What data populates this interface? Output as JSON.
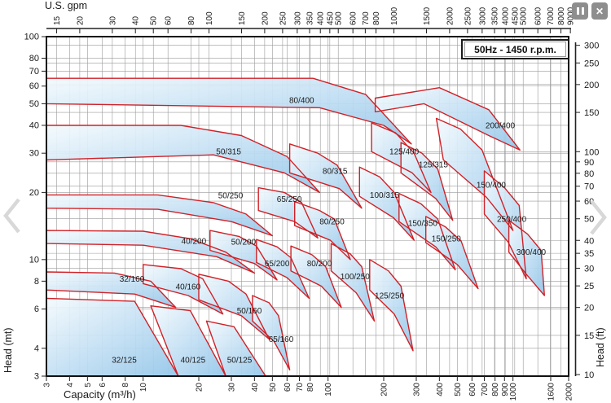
{
  "viewer": {
    "pause_icon": "pause",
    "close_icon": "✕",
    "prev_icon": "chevron-left",
    "next_icon": "chevron-right"
  },
  "chart_data": {
    "type": "area",
    "title": "50Hz - 1450 r.p.m.",
    "scale": "log-log",
    "gpm_per_m3h": 4.4029,
    "ft_per_m": 3.2808,
    "axes": {
      "top": {
        "label": "U.S. gpm",
        "ticks": [
          15,
          20,
          30,
          40,
          50,
          60,
          80,
          100,
          150,
          200,
          250,
          300,
          350,
          400,
          450,
          500,
          600,
          700,
          800,
          1000,
          1500,
          2000,
          2500,
          3000,
          3500,
          4000,
          4500,
          5000,
          6000,
          7000,
          8000,
          9000
        ]
      },
      "bottom": {
        "label": "Capacity (m³/h)",
        "range": [
          3,
          2000
        ],
        "ticks": [
          3,
          4,
          5,
          6,
          8,
          10,
          20,
          30,
          40,
          50,
          60,
          70,
          80,
          100,
          200,
          300,
          400,
          500,
          600,
          700,
          800,
          900,
          1000,
          1600,
          2000
        ]
      },
      "left": {
        "label": "Head (mt)",
        "range": [
          3,
          100
        ],
        "ticks": [
          100,
          80,
          70,
          60,
          50,
          40,
          30,
          20,
          10,
          8,
          6,
          4,
          3
        ]
      },
      "right": {
        "label": "Head (ft)",
        "ticks": [
          300,
          250,
          200,
          150,
          100,
          90,
          80,
          70,
          60,
          50,
          40,
          35,
          30,
          25,
          20,
          15,
          10
        ]
      }
    },
    "colors": {
      "curve": "#cf2127",
      "grid": "#9a9a9a",
      "axis": "#1a1a1a",
      "fill_light": "#f4fafd",
      "fill_mid": "#c4e0f4",
      "fill_dark": "#93c6e9"
    },
    "regions": [
      {
        "label": "80/400",
        "label_q": 72,
        "label_h": 52,
        "points": [
          [
            3,
            65
          ],
          [
            83,
            65
          ],
          [
            160,
            55
          ],
          [
            282,
            33
          ],
          [
            200,
            40
          ],
          [
            90,
            48
          ],
          [
            3,
            50
          ]
        ]
      },
      {
        "label": "50/315",
        "label_q": 29,
        "label_h": 30.5,
        "points": [
          [
            3,
            40
          ],
          [
            16,
            40
          ],
          [
            34,
            36
          ],
          [
            60,
            29
          ],
          [
            90,
            20
          ],
          [
            58,
            24.5
          ],
          [
            24,
            29.5
          ],
          [
            3,
            28
          ]
        ]
      },
      {
        "label": "50/250",
        "label_q": 29.7,
        "label_h": 19.4,
        "points": [
          [
            3,
            19.5
          ],
          [
            12,
            19.5
          ],
          [
            24,
            18
          ],
          [
            36,
            16
          ],
          [
            50,
            12.8
          ],
          [
            30,
            14.8
          ],
          [
            12,
            16.8
          ],
          [
            3,
            17
          ]
        ]
      },
      {
        "label": "40/200",
        "label_q": 18.8,
        "label_h": 12.1,
        "points": [
          [
            3,
            13.5
          ],
          [
            10,
            13.4
          ],
          [
            18,
            12.4
          ],
          [
            28,
            10.8
          ],
          [
            40,
            8.7
          ],
          [
            25,
            10.3
          ],
          [
            10,
            11.6
          ],
          [
            3,
            11.8
          ]
        ]
      },
      {
        "label": "32/160",
        "label_q": 8.7,
        "label_h": 8.2,
        "points": [
          [
            3,
            8.8
          ],
          [
            7,
            8.7
          ],
          [
            11,
            8
          ],
          [
            15,
            6.1
          ],
          [
            9,
            7
          ],
          [
            3,
            7.3
          ]
        ]
      },
      {
        "label": "32/125",
        "label_q": 7.9,
        "label_h": 3.55,
        "points": [
          [
            3,
            6.7
          ],
          [
            9,
            6.5
          ],
          [
            15.5,
            3
          ],
          [
            3,
            3
          ]
        ]
      },
      {
        "label": "40/160",
        "label_q": 17.5,
        "label_h": 7.55,
        "points": [
          [
            10,
            9.5
          ],
          [
            16,
            9.1
          ],
          [
            21,
            8.2
          ],
          [
            27,
            5.7
          ],
          [
            17.5,
            6.9
          ],
          [
            10,
            7.8
          ]
        ]
      },
      {
        "label": "40/125",
        "label_q": 18.6,
        "label_h": 3.55,
        "points": [
          [
            11,
            6.2
          ],
          [
            18,
            5.9
          ],
          [
            28,
            3
          ],
          [
            15.5,
            3
          ]
        ]
      },
      {
        "label": "50/200",
        "label_q": 34.9,
        "label_h": 12,
        "points": [
          [
            23,
            13.5
          ],
          [
            33,
            12.7
          ],
          [
            41,
            11.5
          ],
          [
            53,
            8.1
          ],
          [
            40,
            9.6
          ],
          [
            23,
            11
          ]
        ]
      },
      {
        "label": "50/160",
        "label_q": 37.5,
        "label_h": 5.9,
        "points": [
          [
            20,
            8.6
          ],
          [
            29,
            8
          ],
          [
            36,
            7
          ],
          [
            48,
            4.4
          ],
          [
            34,
            5.6
          ],
          [
            20,
            6.6
          ]
        ]
      },
      {
        "label": "50/125",
        "label_q": 33.2,
        "label_h": 3.55,
        "points": [
          [
            22,
            5.3
          ],
          [
            31,
            5
          ],
          [
            46,
            3
          ],
          [
            28,
            3
          ]
        ]
      },
      {
        "label": "65/250",
        "label_q": 61.7,
        "label_h": 18.7,
        "points": [
          [
            42,
            21
          ],
          [
            58,
            20
          ],
          [
            72,
            18
          ],
          [
            88,
            12.5
          ],
          [
            66,
            14.8
          ],
          [
            42,
            16.6
          ]
        ]
      },
      {
        "label": "65/200",
        "label_q": 53,
        "label_h": 9.6,
        "points": [
          [
            41,
            12.3
          ],
          [
            53,
            11.4
          ],
          [
            63,
            10.2
          ],
          [
            79,
            6.7
          ],
          [
            60,
            8.3
          ],
          [
            41,
            9.7
          ]
        ]
      },
      {
        "label": "65/160",
        "label_q": 55.7,
        "label_h": 4.4,
        "points": [
          [
            39,
            6.9
          ],
          [
            48,
            6.4
          ],
          [
            54,
            5.6
          ],
          [
            62,
            3.2
          ],
          [
            51,
            4.3
          ],
          [
            39,
            5.3
          ]
        ]
      },
      {
        "label": "80/315",
        "label_q": 109,
        "label_h": 25,
        "points": [
          [
            62,
            33
          ],
          [
            88,
            30
          ],
          [
            112,
            26.5
          ],
          [
            152,
            17
          ],
          [
            115,
            20.8
          ],
          [
            62,
            24.5
          ]
        ]
      },
      {
        "label": "80/250",
        "label_q": 105,
        "label_h": 14.8,
        "points": [
          [
            66,
            18.2
          ],
          [
            90,
            16.6
          ],
          [
            108,
            15.2
          ],
          [
            132,
            10
          ],
          [
            103,
            12.2
          ],
          [
            66,
            14.2
          ]
        ]
      },
      {
        "label": "80/200",
        "label_q": 89.7,
        "label_h": 9.6,
        "points": [
          [
            63,
            11.5
          ],
          [
            82,
            10.5
          ],
          [
            97,
            9.3
          ],
          [
            118,
            6.1
          ],
          [
            92,
            7.6
          ],
          [
            63,
            8.9
          ]
        ]
      },
      {
        "label": "100/315",
        "label_q": 202,
        "label_h": 19.5,
        "points": [
          [
            148,
            26
          ],
          [
            190,
            23.5
          ],
          [
            228,
            20
          ],
          [
            292,
            12.2
          ],
          [
            226,
            15.4
          ],
          [
            148,
            19.2
          ]
        ]
      },
      {
        "label": "100/250",
        "label_q": 140,
        "label_h": 8.4,
        "points": [
          [
            104,
            11.8
          ],
          [
            132,
            10.6
          ],
          [
            152,
            9.3
          ],
          [
            178,
            5.3
          ],
          [
            142,
            7.1
          ],
          [
            104,
            8.9
          ]
        ]
      },
      {
        "label": "125/400",
        "label_q": 258,
        "label_h": 30.5,
        "points": [
          [
            172,
            41
          ],
          [
            232,
            37
          ],
          [
            292,
            30
          ],
          [
            360,
            20
          ],
          [
            285,
            24.5
          ],
          [
            172,
            30.5
          ]
        ]
      },
      {
        "label": "125/315",
        "label_q": 371,
        "label_h": 26.7,
        "points": [
          [
            248,
            33.5
          ],
          [
            322,
            30
          ],
          [
            392,
            25.5
          ],
          [
            472,
            15
          ],
          [
            382,
            18.8
          ],
          [
            248,
            24.5
          ]
        ]
      },
      {
        "label": "125/250",
        "label_q": 215,
        "label_h": 6.9,
        "points": [
          [
            168,
            10
          ],
          [
            212,
            8.9
          ],
          [
            248,
            7.6
          ],
          [
            288,
            3.9
          ],
          [
            228,
            5.7
          ],
          [
            168,
            7.3
          ]
        ]
      },
      {
        "label": "150/400",
        "label_q": 762,
        "label_h": 21.6,
        "points": [
          [
            385,
            43
          ],
          [
            520,
            38.5
          ],
          [
            680,
            31
          ],
          [
            1000,
            13.5
          ],
          [
            720,
            19
          ],
          [
            420,
            28
          ]
        ]
      },
      {
        "label": "150/350",
        "label_q": 325,
        "label_h": 14.6,
        "points": [
          [
            242,
            19.8
          ],
          [
            318,
            17.8
          ],
          [
            392,
            15.2
          ],
          [
            488,
            9
          ],
          [
            382,
            11.4
          ],
          [
            242,
            14.8
          ]
        ]
      },
      {
        "label": "150/250",
        "label_q": 436,
        "label_h": 12.4,
        "points": [
          [
            338,
            15.6
          ],
          [
            432,
            14
          ],
          [
            525,
            12.1
          ],
          [
            648,
            7.4
          ],
          [
            500,
            9.5
          ],
          [
            338,
            11.9
          ]
        ]
      },
      {
        "label": "200/400",
        "label_q": 853,
        "label_h": 40,
        "points": [
          [
            180,
            53
          ],
          [
            400,
            59
          ],
          [
            740,
            47
          ],
          [
            1090,
            31
          ],
          [
            740,
            36
          ],
          [
            330,
            50
          ],
          [
            180,
            46
          ]
        ]
      },
      {
        "label": "250/400",
        "label_q": 984,
        "label_h": 15.2,
        "points": [
          [
            700,
            25
          ],
          [
            900,
            21
          ],
          [
            1080,
            17.5
          ],
          [
            1180,
            8.2
          ],
          [
            940,
            12
          ],
          [
            700,
            16
          ]
        ]
      },
      {
        "label": "300/400",
        "label_q": 1254,
        "label_h": 10.8,
        "points": [
          [
            950,
            15
          ],
          [
            1200,
            13
          ],
          [
            1420,
            11
          ],
          [
            1480,
            6.9
          ],
          [
            1180,
            8.6
          ],
          [
            950,
            10.8
          ]
        ]
      }
    ]
  }
}
